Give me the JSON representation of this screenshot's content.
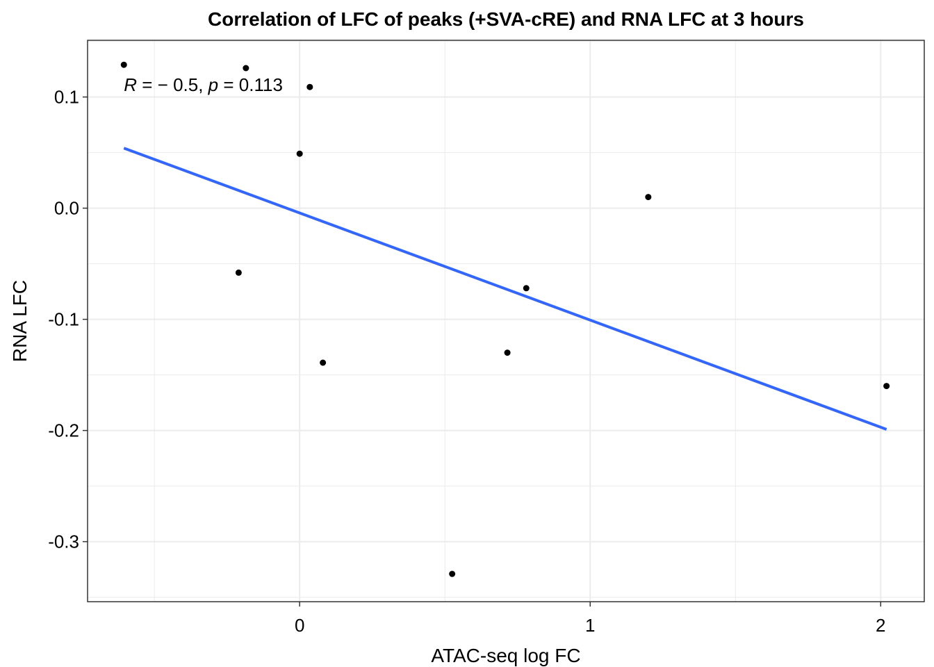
{
  "chart_data": {
    "type": "scatter",
    "title": "Correlation of LFC of peaks (+SVA-cRE)  and RNA LFC at 3 hours",
    "xlabel": "ATAC-seq log FC",
    "ylabel": "RNA LFC",
    "xlim": [
      -0.73,
      2.15
    ],
    "ylim": [
      -0.354,
      0.151
    ],
    "x_ticks": [
      0,
      1,
      2
    ],
    "x_tick_labels": [
      "0",
      "1",
      "2"
    ],
    "y_ticks": [
      0.1,
      0.0,
      -0.1,
      -0.2,
      -0.3
    ],
    "y_tick_labels": [
      "0.1",
      "0.0",
      "-0.1",
      "-0.2",
      "-0.3"
    ],
    "grid": true,
    "points": [
      {
        "x": -0.605,
        "y": 0.129
      },
      {
        "x": -0.185,
        "y": 0.126
      },
      {
        "x": 0.035,
        "y": 0.109
      },
      {
        "x": 0.0,
        "y": 0.049
      },
      {
        "x": -0.21,
        "y": -0.058
      },
      {
        "x": 0.08,
        "y": -0.139
      },
      {
        "x": 0.525,
        "y": -0.329
      },
      {
        "x": 0.715,
        "y": -0.13
      },
      {
        "x": 0.78,
        "y": -0.072
      },
      {
        "x": 1.2,
        "y": 0.01
      },
      {
        "x": 2.02,
        "y": -0.16
      }
    ],
    "regression": {
      "x_start": -0.605,
      "y_start": 0.054,
      "x_end": 2.02,
      "y_end": -0.199
    },
    "annotation": {
      "r_symbol": "R",
      "r_text": " = − 0.5, ",
      "p_symbol": "p",
      "p_text": " = 0.113",
      "x": -0.605,
      "y": 0.111
    },
    "colors": {
      "points": "#000000",
      "regression_line": "#3366FF",
      "grid": "#EBEBEB",
      "panel_border": "#333333"
    }
  }
}
